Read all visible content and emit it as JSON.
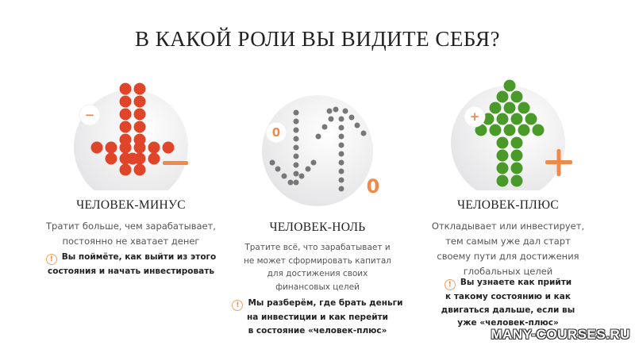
{
  "title": "В КАКОЙ РОЛИ ВЫ ВИДИТЕ СЕБЯ?",
  "colors": {
    "accent": "#f08a4b",
    "minus": "#e0452a",
    "plus": "#4a9a2a",
    "zero": "#666666"
  },
  "roles": [
    {
      "name": "ЧЕЛОВЕК-МИНУС",
      "badge": "−",
      "sign": "−",
      "icon": "down-arrow-icon",
      "desc": [
        "Тратит больше, чем зарабатывает,",
        "постоянно не хватает денег"
      ],
      "note": [
        "Вы поймёте, как выйти из этого",
        "состояния и начать инвестировать"
      ]
    },
    {
      "name": "ЧЕЛОВЕК-НОЛЬ",
      "badge": "0",
      "sign": "0",
      "icon": "down-up-arrows-icon",
      "desc": [
        "Тратите всё, что зарабатывает и",
        "не может сформировать капитал",
        "для достижения своих",
        "финансовых целей"
      ],
      "note": [
        "Мы разберём, где брать деньги",
        "на инвестиции и как перейти",
        "в состояние «человек-плюс»"
      ]
    },
    {
      "name": "ЧЕЛОВЕК-ПЛЮС",
      "badge": "+",
      "sign": "+",
      "icon": "up-arrow-icon",
      "desc": [
        "Откладывает или инвестирует,",
        "тем самым уже дал старт",
        "своему пути для достижения",
        "глобальных целей"
      ],
      "note": [
        "Вы узнаете как прийти",
        "к такому состоянию и как",
        "двигаться дальше, если вы",
        "уже «человек-плюс»"
      ]
    }
  ],
  "note_icon": "info-icon",
  "watermark": "MANY-COURSES.RU"
}
